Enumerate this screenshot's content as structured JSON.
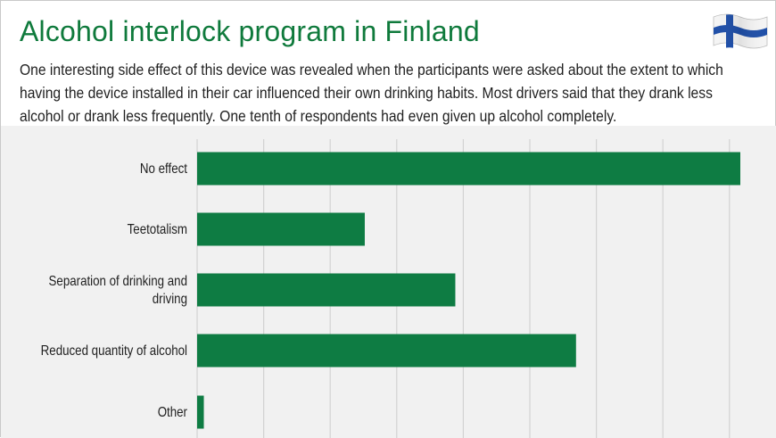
{
  "title": "Alcohol interlock program in Finland",
  "subtitle": "One interesting side effect of this device was revealed when the participants were asked about the extent to which having the device installed in their car influenced their own drinking habits. Most drivers said that they drank less alcohol or drank less frequently. One tenth of respondents had even given up alcohol completely.",
  "flag": "finland-flag-icon",
  "colors": {
    "title": "#0f7a3c",
    "bar": "#0e7c43",
    "chart_background": "#f1f1f1",
    "gridline": "#d3d3d3"
  },
  "chart_data": {
    "type": "bar",
    "orientation": "horizontal",
    "categories": [
      "No effect",
      "Teetotalism",
      "Separation of drinking and driving",
      "Reduced quantity of alcohol",
      "Other"
    ],
    "category_label_lines": [
      [
        "No effect"
      ],
      [
        "Teetotalism"
      ],
      [
        "Separation of drinking and",
        "driving"
      ],
      [
        "Reduced quantity of alcohol"
      ],
      [
        "Other"
      ]
    ],
    "values": [
      81,
      25,
      38.5,
      56.5,
      1
    ],
    "xlim": [
      0,
      81
    ],
    "gridlines": [
      0,
      10,
      20,
      30,
      40,
      50,
      60,
      70,
      80
    ],
    "grid": true,
    "xlabel": "",
    "ylabel": ""
  }
}
